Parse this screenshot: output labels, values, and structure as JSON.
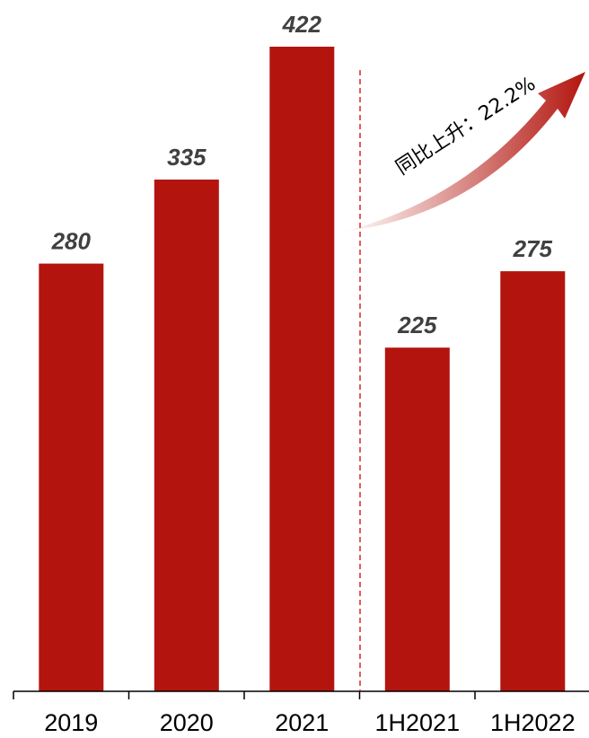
{
  "chart_data": {
    "type": "bar",
    "categories": [
      "2019",
      "2020",
      "2021",
      "1H2021",
      "1H2022"
    ],
    "series": [
      {
        "values": [
          280,
          335,
          422,
          225,
          275
        ]
      }
    ],
    "data_labels": [
      "280",
      "335",
      "422",
      "225",
      "275"
    ],
    "ylim": [
      0,
      430
    ],
    "grid": false,
    "legend": "none",
    "annotation": "同比上升：22.2%",
    "bar_color": "#B3150E",
    "divider_color": "#D42A2A"
  }
}
